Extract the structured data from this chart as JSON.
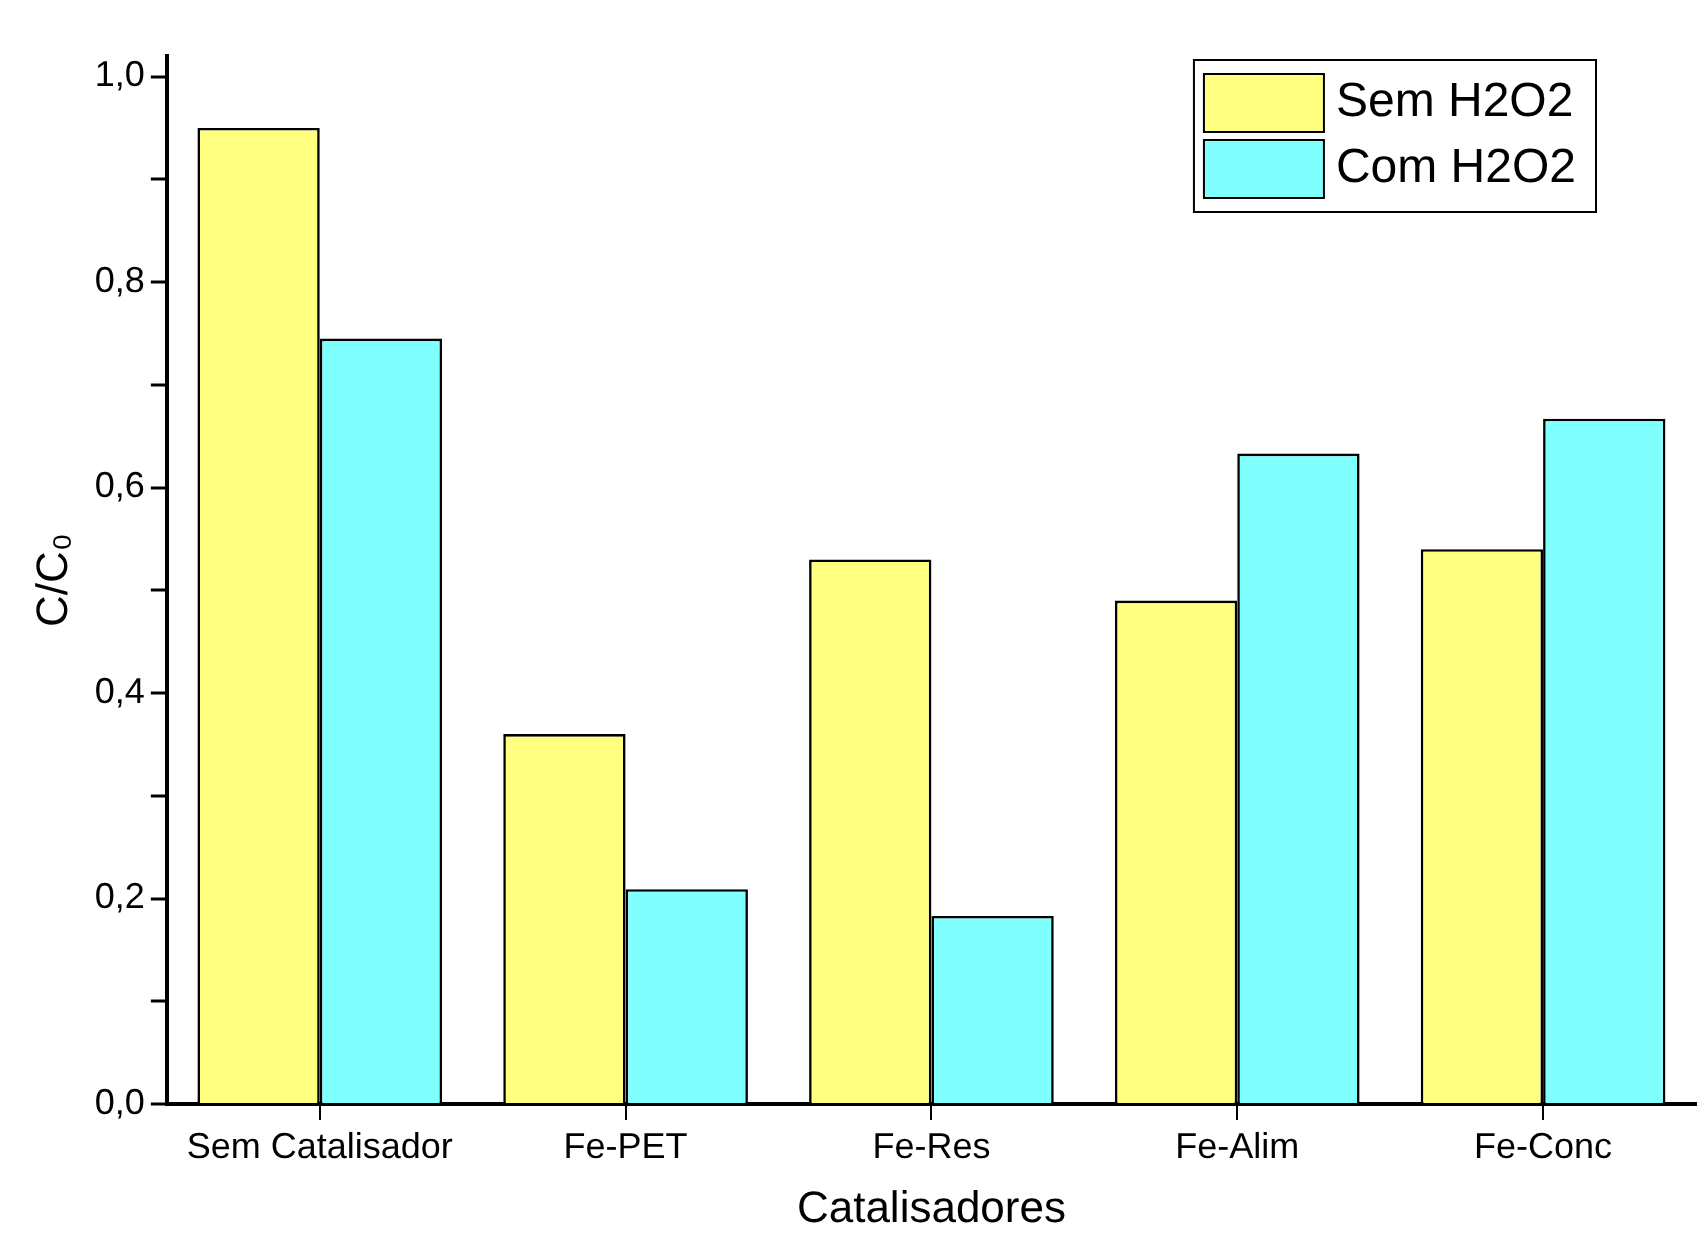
{
  "chart_data": {
    "type": "bar",
    "xlabel": "Catalisadores",
    "ylabel": "C/C₀",
    "categories": [
      "Sem Catalisador",
      "Fe-PET",
      "Fe-Res",
      "Fe-Alim",
      "Fe-Conc"
    ],
    "series": [
      {
        "name": "Sem H2O2",
        "color": "#ffff80",
        "values": [
          0.95,
          0.36,
          0.53,
          0.49,
          0.54
        ]
      },
      {
        "name": "Com H2O2",
        "color": "#80ffff",
        "values": [
          0.745,
          0.209,
          0.183,
          0.633,
          0.667
        ]
      }
    ],
    "ylim": [
      0,
      1.02
    ],
    "yticks": [
      {
        "value": 0,
        "label": "0,0"
      },
      {
        "value": 0.1,
        "label": null
      },
      {
        "value": 0.2,
        "label": "0,2"
      },
      {
        "value": 0.3,
        "label": null
      },
      {
        "value": 0.4,
        "label": "0,4"
      },
      {
        "value": 0.5,
        "label": null
      },
      {
        "value": 0.6,
        "label": "0,6"
      },
      {
        "value": 0.7,
        "label": null
      },
      {
        "value": 0.8,
        "label": "0,8"
      },
      {
        "value": 0.9,
        "label": null
      },
      {
        "value": 1,
        "label": "1,0"
      }
    ],
    "grid": false,
    "legend": "top right"
  }
}
